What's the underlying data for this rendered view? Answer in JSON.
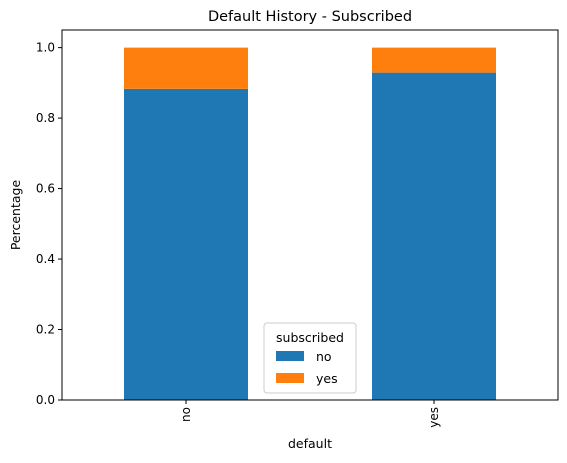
{
  "chart_data": {
    "type": "bar",
    "stacked": true,
    "title": "Default History - Subscribed",
    "xlabel": "default",
    "ylabel": "Percentage",
    "categories": [
      "no",
      "yes"
    ],
    "series": [
      {
        "name": "no",
        "values": [
          0.883,
          0.929
        ],
        "color": "#1f77b4"
      },
      {
        "name": "yes",
        "values": [
          0.117,
          0.071
        ],
        "color": "#ff7f0e"
      }
    ],
    "ylim": [
      0,
      1.05
    ],
    "yticks": [
      0.0,
      0.2,
      0.4,
      0.6,
      0.8,
      1.0
    ],
    "ytick_labels": [
      "0.0",
      "0.2",
      "0.4",
      "0.6",
      "0.8",
      "1.0"
    ],
    "grid": false,
    "legend": {
      "title": "subscribed",
      "placement": "lower-center"
    }
  }
}
